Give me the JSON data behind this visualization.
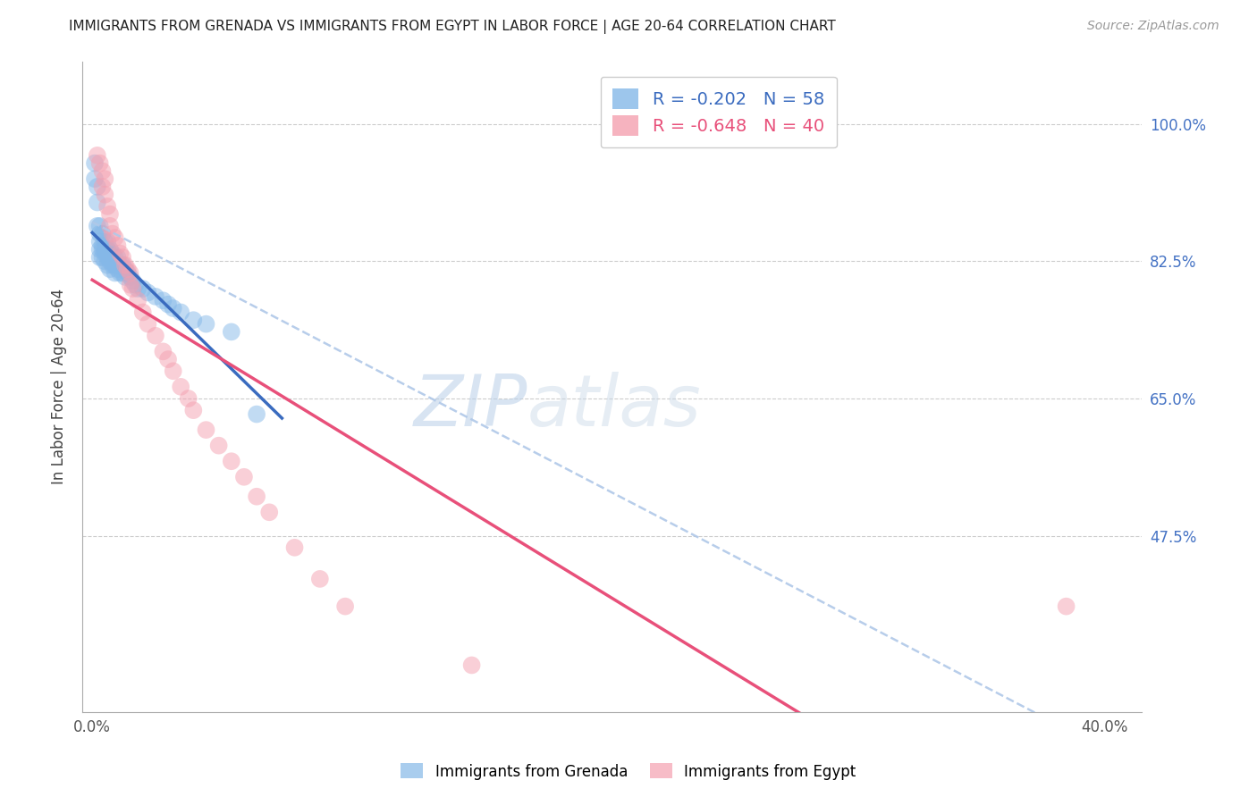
{
  "title": "IMMIGRANTS FROM GRENADA VS IMMIGRANTS FROM EGYPT IN LABOR FORCE | AGE 20-64 CORRELATION CHART",
  "source": "Source: ZipAtlas.com",
  "ylabel": "In Labor Force | Age 20-64",
  "r_grenada": -0.202,
  "n_grenada": 58,
  "r_egypt": -0.648,
  "n_egypt": 40,
  "color_grenada": "#85b8e8",
  "color_egypt": "#f4a0b0",
  "color_grenada_line": "#3a6bbf",
  "color_egypt_line": "#e8507a",
  "color_dashed": "#b0c8e8",
  "color_right_axis": "#4472c4",
  "grenada_x": [
    0.001,
    0.001,
    0.002,
    0.002,
    0.002,
    0.003,
    0.003,
    0.003,
    0.003,
    0.003,
    0.004,
    0.004,
    0.004,
    0.004,
    0.005,
    0.005,
    0.005,
    0.005,
    0.006,
    0.006,
    0.006,
    0.006,
    0.006,
    0.007,
    0.007,
    0.007,
    0.007,
    0.008,
    0.008,
    0.008,
    0.009,
    0.009,
    0.009,
    0.01,
    0.01,
    0.01,
    0.011,
    0.011,
    0.012,
    0.012,
    0.013,
    0.013,
    0.014,
    0.015,
    0.016,
    0.017,
    0.018,
    0.02,
    0.022,
    0.025,
    0.028,
    0.03,
    0.032,
    0.035,
    0.04,
    0.045,
    0.055,
    0.065
  ],
  "grenada_y": [
    0.95,
    0.93,
    0.92,
    0.9,
    0.87,
    0.87,
    0.86,
    0.85,
    0.84,
    0.83,
    0.86,
    0.845,
    0.84,
    0.83,
    0.85,
    0.84,
    0.835,
    0.825,
    0.85,
    0.84,
    0.835,
    0.83,
    0.82,
    0.84,
    0.835,
    0.825,
    0.815,
    0.835,
    0.825,
    0.82,
    0.83,
    0.82,
    0.81,
    0.83,
    0.82,
    0.815,
    0.82,
    0.81,
    0.82,
    0.81,
    0.815,
    0.805,
    0.81,
    0.805,
    0.8,
    0.795,
    0.79,
    0.79,
    0.785,
    0.78,
    0.775,
    0.77,
    0.765,
    0.76,
    0.75,
    0.745,
    0.735,
    0.63
  ],
  "egypt_x": [
    0.002,
    0.003,
    0.004,
    0.004,
    0.005,
    0.005,
    0.006,
    0.007,
    0.007,
    0.008,
    0.009,
    0.01,
    0.011,
    0.012,
    0.013,
    0.014,
    0.015,
    0.015,
    0.016,
    0.018,
    0.02,
    0.022,
    0.025,
    0.028,
    0.03,
    0.032,
    0.035,
    0.038,
    0.04,
    0.045,
    0.05,
    0.055,
    0.06,
    0.065,
    0.07,
    0.08,
    0.09,
    0.1,
    0.15,
    0.385
  ],
  "egypt_y": [
    0.96,
    0.95,
    0.94,
    0.92,
    0.93,
    0.91,
    0.895,
    0.885,
    0.87,
    0.86,
    0.855,
    0.845,
    0.835,
    0.83,
    0.82,
    0.815,
    0.81,
    0.795,
    0.79,
    0.775,
    0.76,
    0.745,
    0.73,
    0.71,
    0.7,
    0.685,
    0.665,
    0.65,
    0.635,
    0.61,
    0.59,
    0.57,
    0.55,
    0.525,
    0.505,
    0.46,
    0.42,
    0.385,
    0.31,
    0.385
  ],
  "xlim": [
    -0.004,
    0.415
  ],
  "ylim": [
    0.25,
    1.08
  ],
  "yticks_right": [
    1.0,
    0.825,
    0.65,
    0.475
  ],
  "ytick_labels_right": [
    "100.0%",
    "82.5%",
    "65.0%",
    "47.5%"
  ],
  "xtick_positions": [
    0.0,
    0.4
  ],
  "xtick_labels": [
    "0.0%",
    "40.0%"
  ],
  "grid_lines": [
    1.0,
    0.825,
    0.65,
    0.475
  ]
}
